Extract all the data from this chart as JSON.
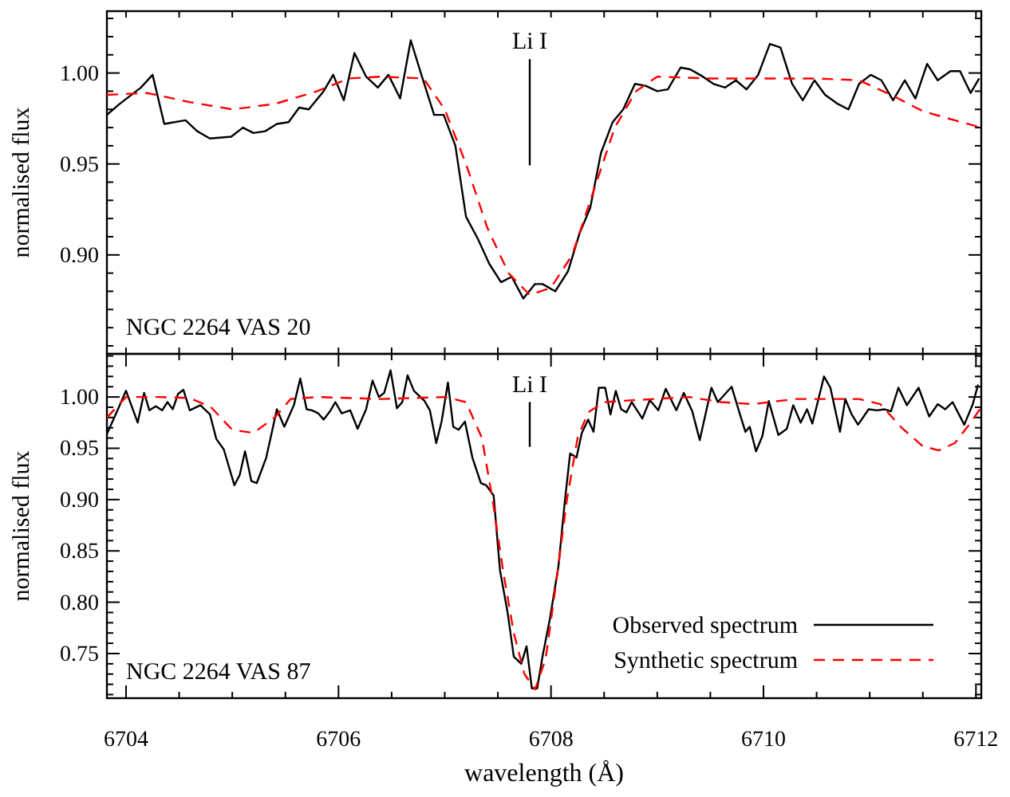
{
  "chart_data": [
    {
      "type": "line",
      "ylabel": "normalised flux",
      "tick_labels": "y",
      "xlim": [
        6703.82,
        6712.05
      ],
      "ylim": [
        0.8456,
        1.034
      ],
      "xticks": [
        {
          "value": 6704,
          "label": null
        },
        {
          "value": 6704.5,
          "label": null
        },
        {
          "value": 6705,
          "label": null
        },
        {
          "value": 6705.5,
          "label": null
        },
        {
          "value": 6706,
          "label": null
        },
        {
          "value": 6706.5,
          "label": null
        },
        {
          "value": 6707,
          "label": null
        },
        {
          "value": 6707.5,
          "label": null
        },
        {
          "value": 6708,
          "label": null
        },
        {
          "value": 6708.5,
          "label": null
        },
        {
          "value": 6709,
          "label": null
        },
        {
          "value": 6709.5,
          "label": null
        },
        {
          "value": 6710,
          "label": null
        },
        {
          "value": 6710.5,
          "label": null
        },
        {
          "value": 6711,
          "label": null
        },
        {
          "value": 6711.5,
          "label": null
        },
        {
          "value": 6712,
          "label": null
        }
      ],
      "yticks": [
        {
          "value": 0.85,
          "label": null
        },
        {
          "value": 0.86,
          "label": null
        },
        {
          "value": 0.87,
          "label": null
        },
        {
          "value": 0.88,
          "label": null
        },
        {
          "value": 0.89,
          "label": null
        },
        {
          "value": 0.9,
          "label": "0.90"
        },
        {
          "value": 0.91,
          "label": null
        },
        {
          "value": 0.92,
          "label": null
        },
        {
          "value": 0.93,
          "label": null
        },
        {
          "value": 0.94,
          "label": null
        },
        {
          "value": 0.95,
          "label": "0.95"
        },
        {
          "value": 0.96,
          "label": null
        },
        {
          "value": 0.97,
          "label": null
        },
        {
          "value": 0.98,
          "label": null
        },
        {
          "value": 0.99,
          "label": null
        },
        {
          "value": 1.0,
          "label": "1.00"
        },
        {
          "value": 1.01,
          "label": null
        },
        {
          "value": 1.02,
          "label": null
        },
        {
          "value": 1.03,
          "label": null
        }
      ],
      "annotations": [
        "NGC 2264 VAS 20"
      ],
      "ref_lines": [
        {
          "axis": "x",
          "value": 6707.8,
          "label": "Li I"
        }
      ],
      "grid": false,
      "legend": false,
      "series": [
        {
          "color": "#000000",
          "line_style": "solid",
          "x": [
            6703.82,
            6703.94,
            6704.14,
            6704.25,
            6704.36,
            6704.56,
            6704.67,
            6704.79,
            6704.99,
            6705.1,
            6705.2,
            6705.31,
            6705.42,
            6705.53,
            6705.63,
            6705.72,
            6705.86,
            6705.95,
            6706.05,
            6706.15,
            6706.26,
            6706.37,
            6706.47,
            6706.58,
            6706.68,
            6706.78,
            6706.9,
            6706.99,
            6707.1,
            6707.2,
            6707.31,
            6707.42,
            6707.53,
            6707.63,
            6707.74,
            6707.85,
            6707.92,
            6708.04,
            6708.16,
            6708.27,
            6708.37,
            6708.47,
            6708.58,
            6708.68,
            6708.79,
            6708.89,
            6709.0,
            6709.1,
            6709.22,
            6709.31,
            6709.43,
            6709.53,
            6709.64,
            6709.74,
            6709.84,
            6709.95,
            6710.06,
            6710.16,
            6710.27,
            6710.37,
            6710.48,
            6710.58,
            6710.7,
            6710.8,
            6710.9,
            6711.01,
            6711.11,
            6711.22,
            6711.33,
            6711.43,
            6711.54,
            6711.64,
            6711.76,
            6711.85,
            6711.95,
            6712.03
          ],
          "values": [
            0.977,
            0.983,
            0.992,
            0.999,
            0.972,
            0.974,
            0.968,
            0.964,
            0.965,
            0.97,
            0.967,
            0.968,
            0.972,
            0.973,
            0.981,
            0.98,
            0.99,
            0.999,
            0.985,
            1.011,
            0.998,
            0.992,
            0.999,
            0.986,
            1.018,
            0.999,
            0.977,
            0.977,
            0.96,
            0.921,
            0.909,
            0.895,
            0.885,
            0.888,
            0.876,
            0.884,
            0.884,
            0.88,
            0.891,
            0.912,
            0.926,
            0.956,
            0.973,
            0.98,
            0.994,
            0.993,
            0.99,
            0.991,
            1.003,
            1.002,
            0.998,
            0.994,
            0.992,
            0.996,
            0.991,
            0.999,
            1.016,
            1.014,
            0.994,
            0.985,
            0.996,
            0.988,
            0.983,
            0.98,
            0.994,
            0.999,
            0.996,
            0.985,
            0.996,
            0.986,
            1.005,
            0.996,
            1.001,
            1.001,
            0.989,
            0.997
          ]
        },
        {
          "color": "#ff0000",
          "line_style": "dashed",
          "x": [
            6703.82,
            6704.2,
            6704.6,
            6705.0,
            6705.4,
            6705.8,
            6706.1,
            6706.4,
            6706.8,
            6707.0,
            6707.2,
            6707.4,
            6707.6,
            6707.8,
            6708.0,
            6708.2,
            6708.4,
            6708.6,
            6708.8,
            6709.0,
            6709.5,
            6710.0,
            6710.5,
            6710.9,
            6711.2,
            6711.5,
            6711.8,
            6712.05
          ],
          "values": [
            0.988,
            0.989,
            0.984,
            0.98,
            0.983,
            0.99,
            0.997,
            0.998,
            0.997,
            0.98,
            0.95,
            0.915,
            0.89,
            0.878,
            0.882,
            0.9,
            0.935,
            0.97,
            0.99,
            0.998,
            0.997,
            0.997,
            0.997,
            0.996,
            0.988,
            0.979,
            0.974,
            0.97
          ]
        }
      ]
    },
    {
      "type": "line",
      "xlabel": "wavelength (Å)",
      "ylabel": "normalised flux",
      "xlim": [
        6703.82,
        6712.05
      ],
      "ylim": [
        0.7065,
        1.042
      ],
      "xticks": [
        6704,
        {
          "value": 6704.5,
          "label": null
        },
        {
          "value": 6705,
          "label": null
        },
        {
          "value": 6705.5,
          "label": null
        },
        6706,
        {
          "value": 6706.5,
          "label": null
        },
        {
          "value": 6707,
          "label": null
        },
        {
          "value": 6707.5,
          "label": null
        },
        6708,
        {
          "value": 6708.5,
          "label": null
        },
        {
          "value": 6709,
          "label": null
        },
        {
          "value": 6709.5,
          "label": null
        },
        6710,
        {
          "value": 6710.5,
          "label": null
        },
        {
          "value": 6711,
          "label": null
        },
        {
          "value": 6711.5,
          "label": null
        },
        6712
      ],
      "yticks": [
        {
          "value": 0.71,
          "label": null
        },
        {
          "value": 0.72,
          "label": null
        },
        {
          "value": 0.73,
          "label": null
        },
        {
          "value": 0.74,
          "label": null
        },
        {
          "value": 0.75,
          "label": "0.75"
        },
        {
          "value": 0.76,
          "label": null
        },
        {
          "value": 0.77,
          "label": null
        },
        {
          "value": 0.78,
          "label": null
        },
        {
          "value": 0.79,
          "label": null
        },
        {
          "value": 0.8,
          "label": "0.80"
        },
        {
          "value": 0.81,
          "label": null
        },
        {
          "value": 0.82,
          "label": null
        },
        {
          "value": 0.83,
          "label": null
        },
        {
          "value": 0.84,
          "label": null
        },
        {
          "value": 0.85,
          "label": "0.85"
        },
        {
          "value": 0.86,
          "label": null
        },
        {
          "value": 0.87,
          "label": null
        },
        {
          "value": 0.88,
          "label": null
        },
        {
          "value": 0.89,
          "label": null
        },
        {
          "value": 0.9,
          "label": "0.90"
        },
        {
          "value": 0.91,
          "label": null
        },
        {
          "value": 0.92,
          "label": null
        },
        {
          "value": 0.93,
          "label": null
        },
        {
          "value": 0.94,
          "label": null
        },
        {
          "value": 0.95,
          "label": "0.95"
        },
        {
          "value": 0.96,
          "label": null
        },
        {
          "value": 0.97,
          "label": null
        },
        {
          "value": 0.98,
          "label": null
        },
        {
          "value": 0.99,
          "label": null
        },
        {
          "value": 1.0,
          "label": "1.00"
        },
        {
          "value": 1.01,
          "label": null
        },
        {
          "value": 1.02,
          "label": null
        },
        {
          "value": 1.03,
          "label": null
        },
        {
          "value": 1.04,
          "label": null
        }
      ],
      "annotations": [
        "NGC 2264 VAS 87"
      ],
      "ref_lines": [
        {
          "axis": "x",
          "value": 6707.8,
          "label": "Li I"
        }
      ],
      "grid": false,
      "legend": "bottom right",
      "series": [
        {
          "name": "Observed spectrum",
          "color": "#000000",
          "line_style": "solid",
          "x": [
            6703.82,
            6703.89,
            6704.0,
            6704.11,
            6704.17,
            6704.22,
            6704.28,
            6704.34,
            6704.39,
            6704.44,
            6704.49,
            6704.54,
            6704.6,
            6704.7,
            6704.79,
            6704.85,
            6704.92,
            6705.02,
            6705.07,
            6705.12,
            6705.18,
            6705.23,
            6705.32,
            6705.42,
            6705.49,
            6705.58,
            6705.64,
            6705.7,
            6705.75,
            6705.81,
            6705.86,
            6705.92,
            6705.97,
            6706.03,
            6706.11,
            6706.18,
            6706.26,
            6706.32,
            6706.38,
            6706.43,
            6706.49,
            6706.55,
            6706.6,
            6706.65,
            6706.71,
            6706.81,
            6706.86,
            6706.92,
            6706.97,
            6707.03,
            6707.08,
            6707.13,
            6707.19,
            6707.26,
            6707.34,
            6707.39,
            6707.46,
            6707.52,
            6707.59,
            6707.65,
            6707.72,
            6707.77,
            6707.82,
            6707.87,
            6707.92,
            6707.99,
            6708.07,
            6708.13,
            6708.18,
            6708.24,
            6708.29,
            6708.35,
            6708.4,
            6708.45,
            6708.51,
            6708.56,
            6708.61,
            6708.66,
            6708.71,
            6708.76,
            6708.86,
            6708.93,
            6709.01,
            6709.08,
            6709.18,
            6709.25,
            6709.33,
            6709.4,
            6709.51,
            6709.57,
            6709.7,
            6709.77,
            6709.83,
            6709.87,
            6709.93,
            6709.99,
            6710.05,
            6710.14,
            6710.22,
            6710.28,
            6710.35,
            6710.41,
            6710.46,
            6710.57,
            6710.63,
            6710.72,
            6710.77,
            6710.83,
            6710.89,
            6710.99,
            6711.07,
            6711.14,
            6711.2,
            6711.27,
            6711.35,
            6711.46,
            6711.56,
            6711.64,
            6711.71,
            6711.78,
            6711.89,
            6711.97,
            6712.02
          ],
          "values": [
            0.964,
            0.98,
            1.006,
            0.975,
            1.004,
            0.987,
            0.991,
            0.987,
            0.995,
            0.988,
            1.003,
            1.007,
            0.987,
            0.992,
            0.983,
            0.959,
            0.949,
            0.914,
            0.924,
            0.947,
            0.918,
            0.916,
            0.941,
            0.988,
            0.971,
            0.992,
            1.018,
            0.988,
            0.987,
            0.984,
            0.978,
            0.986,
            0.995,
            0.984,
            0.987,
            0.969,
            0.988,
            1.016,
            1.0,
            1.004,
            1.026,
            0.989,
            0.995,
            1.021,
            1.006,
            0.996,
            0.987,
            0.955,
            0.976,
            1.014,
            0.971,
            0.968,
            0.976,
            0.941,
            0.916,
            0.914,
            0.904,
            0.831,
            0.791,
            0.747,
            0.74,
            0.757,
            0.716,
            0.716,
            0.747,
            0.784,
            0.835,
            0.898,
            0.945,
            0.941,
            0.965,
            0.978,
            0.966,
            1.009,
            1.009,
            0.983,
            1.006,
            0.988,
            0.985,
            0.995,
            0.979,
            0.997,
            0.987,
            1.008,
            0.987,
            1.004,
            0.986,
            0.958,
            1.009,
            0.995,
            1.01,
            0.986,
            0.966,
            0.971,
            0.947,
            0.962,
            0.996,
            0.963,
            0.969,
            0.992,
            0.975,
            0.988,
            0.974,
            1.02,
            1.009,
            0.966,
            0.998,
            0.983,
            0.973,
            0.988,
            0.987,
            0.988,
            0.986,
            1.009,
            0.992,
            1.009,
            0.981,
            0.993,
            0.988,
            0.995,
            0.973,
            0.993,
            1.012
          ]
        },
        {
          "name": "Synthetic spectrum",
          "color": "#ff0000",
          "line_style": "dashed",
          "x": [
            6703.82,
            6704.0,
            6704.3,
            6704.6,
            6704.8,
            6705.0,
            6705.2,
            6705.4,
            6705.55,
            6705.8,
            6706.4,
            6707.0,
            6707.2,
            6707.35,
            6707.45,
            6707.55,
            6707.65,
            6707.75,
            6707.85,
            6707.95,
            6708.05,
            6708.15,
            6708.25,
            6708.35,
            6708.5,
            6708.8,
            6709.3,
            6709.6,
            6709.9,
            6710.3,
            6710.9,
            6711.1,
            6711.3,
            6711.5,
            6711.65,
            6711.8,
            6711.95,
            6712.05
          ],
          "values": [
            0.98,
            1.0,
            1.0,
            0.999,
            0.99,
            0.968,
            0.965,
            0.98,
            0.998,
            1.0,
            0.998,
            1.0,
            0.995,
            0.96,
            0.9,
            0.83,
            0.77,
            0.73,
            0.715,
            0.745,
            0.82,
            0.9,
            0.96,
            0.985,
            0.995,
            0.997,
            1.0,
            0.995,
            0.993,
            0.998,
            0.998,
            0.993,
            0.97,
            0.952,
            0.948,
            0.955,
            0.975,
            0.99
          ]
        }
      ]
    }
  ]
}
